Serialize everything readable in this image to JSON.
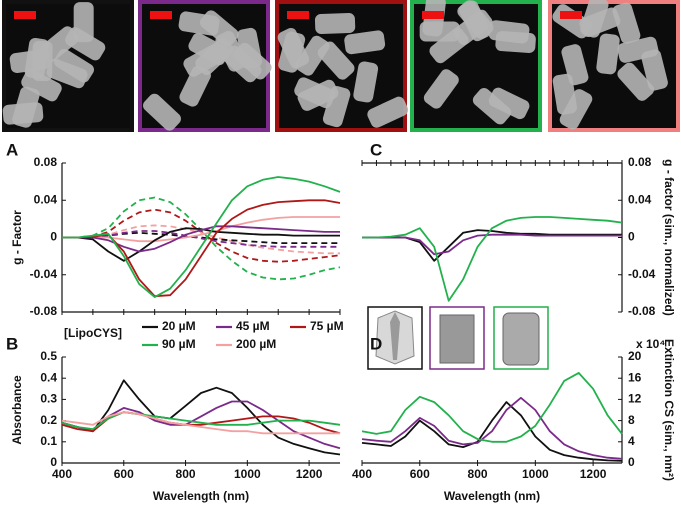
{
  "chart_data": [
    {
      "type": "line",
      "panel": "A",
      "ylabel": "g - Factor",
      "x": [
        400,
        450,
        500,
        550,
        600,
        650,
        700,
        750,
        800,
        850,
        900,
        950,
        1000,
        1050,
        1100,
        1150,
        1200,
        1250,
        1300
      ],
      "xlim": [
        400,
        1300
      ],
      "xticks": [
        400,
        500,
        600,
        700,
        800,
        900,
        1000,
        1100,
        1200,
        1300
      ],
      "ylim": [
        -0.08,
        0.08
      ],
      "yticks": [
        -0.08,
        -0.04,
        0,
        0.04,
        0.08
      ],
      "series": [
        {
          "color": "#22b14c",
          "line_style": "dashed",
          "values": [
            0,
            0,
            0.002,
            0.01,
            0.028,
            0.04,
            0.043,
            0.038,
            0.025,
            0.008,
            -0.01,
            -0.025,
            -0.037,
            -0.043,
            -0.045,
            -0.044,
            -0.04,
            -0.035,
            -0.032
          ]
        },
        {
          "color": "#b01818",
          "line_style": "dashed",
          "values": [
            0,
            0,
            0.001,
            0.006,
            0.018,
            0.027,
            0.03,
            0.027,
            0.018,
            0.006,
            -0.006,
            -0.015,
            -0.022,
            -0.025,
            -0.026,
            -0.025,
            -0.023,
            -0.021,
            -0.019
          ]
        },
        {
          "color": "#f4a0a0",
          "line_style": "dashed",
          "values": [
            0,
            0,
            0,
            0.003,
            0.008,
            0.012,
            0.013,
            0.012,
            0.009,
            0.005,
            0,
            -0.004,
            -0.008,
            -0.011,
            -0.013,
            -0.015,
            -0.016,
            -0.017,
            -0.017
          ]
        },
        {
          "color": "#111111",
          "line_style": "dashed",
          "values": [
            0,
            0,
            0,
            0.002,
            0.004,
            0.005,
            0.004,
            0.003,
            0.001,
            0,
            -0.002,
            -0.003,
            -0.004,
            -0.005,
            -0.006,
            -0.006,
            -0.006,
            -0.006,
            -0.006
          ]
        },
        {
          "color": "#7b2a8c",
          "line_style": "dashed",
          "values": [
            0,
            0,
            0,
            0.002,
            0.005,
            0.007,
            0.007,
            0.005,
            0.002,
            -0.001,
            -0.004,
            -0.006,
            -0.008,
            -0.009,
            -0.01,
            -0.01,
            -0.01,
            -0.01,
            -0.01
          ]
        },
        {
          "color": "#f4a0a0",
          "line_style": "solid",
          "values": [
            0,
            0,
            0,
            0,
            -0.002,
            -0.004,
            -0.004,
            -0.002,
            0,
            0.003,
            0.007,
            0.012,
            0.016,
            0.019,
            0.021,
            0.022,
            0.022,
            0.022,
            0.022
          ]
        },
        {
          "color": "#111111",
          "line_style": "solid",
          "values": [
            0,
            0,
            -0.002,
            -0.015,
            -0.025,
            -0.015,
            -0.003,
            0.006,
            0.01,
            0.009,
            0.006,
            0.005,
            0.004,
            0.003,
            0.003,
            0.002,
            0.002,
            0.002,
            0.002
          ]
        },
        {
          "color": "#7b2a8c",
          "line_style": "solid",
          "values": [
            0,
            0,
            0,
            -0.003,
            -0.01,
            -0.015,
            -0.012,
            -0.005,
            0.003,
            0.008,
            0.012,
            0.012,
            0.011,
            0.01,
            0.009,
            0.008,
            0.007,
            0.006,
            0.006
          ]
        },
        {
          "color": "#b01818",
          "line_style": "solid",
          "values": [
            0,
            0,
            0.001,
            0.003,
            -0.015,
            -0.045,
            -0.063,
            -0.062,
            -0.045,
            -0.02,
            0.005,
            0.02,
            0.03,
            0.035,
            0.038,
            0.039,
            0.04,
            0.04,
            0.037
          ]
        },
        {
          "color": "#22b14c",
          "line_style": "solid",
          "values": [
            0,
            0,
            0.002,
            0.004,
            -0.02,
            -0.05,
            -0.064,
            -0.055,
            -0.035,
            -0.01,
            0.015,
            0.04,
            0.055,
            0.062,
            0.065,
            0.063,
            0.06,
            0.055,
            0.049
          ]
        }
      ]
    },
    {
      "type": "line",
      "panel": "B",
      "ylabel": "Absorbance",
      "xlabel": "Wavelength (nm)",
      "legend_title": "[LipoCYS]",
      "x": [
        400,
        450,
        500,
        550,
        600,
        650,
        700,
        750,
        800,
        850,
        900,
        950,
        1000,
        1050,
        1100,
        1150,
        1200,
        1250,
        1300
      ],
      "xlim": [
        400,
        1300
      ],
      "xticks": [
        400,
        600,
        800,
        1000,
        1200
      ],
      "ylim": [
        0,
        0.5
      ],
      "yticks": [
        0,
        0.1,
        0.2,
        0.3,
        0.4,
        0.5
      ],
      "series": [
        {
          "name": "20 µM",
          "color": "#111111",
          "values": [
            0.19,
            0.17,
            0.15,
            0.25,
            0.39,
            0.3,
            0.22,
            0.21,
            0.27,
            0.33,
            0.355,
            0.33,
            0.26,
            0.18,
            0.12,
            0.09,
            0.07,
            0.05,
            0.04
          ]
        },
        {
          "name": "45 µM",
          "color": "#7b2a8c",
          "values": [
            0.19,
            0.17,
            0.15,
            0.22,
            0.26,
            0.24,
            0.2,
            0.18,
            0.18,
            0.22,
            0.26,
            0.29,
            0.29,
            0.25,
            0.2,
            0.15,
            0.12,
            0.09,
            0.07
          ]
        },
        {
          "name": "75 µM",
          "color": "#b01818",
          "values": [
            0.18,
            0.16,
            0.15,
            0.21,
            0.24,
            0.23,
            0.21,
            0.19,
            0.18,
            0.18,
            0.19,
            0.2,
            0.21,
            0.22,
            0.22,
            0.21,
            0.19,
            0.16,
            0.14
          ]
        },
        {
          "name": "90 µM",
          "color": "#22b14c",
          "values": [
            0.19,
            0.17,
            0.16,
            0.21,
            0.24,
            0.23,
            0.22,
            0.21,
            0.2,
            0.19,
            0.18,
            0.18,
            0.18,
            0.19,
            0.2,
            0.2,
            0.2,
            0.19,
            0.18
          ]
        },
        {
          "name": "200 µM",
          "color": "#f4a0a0",
          "values": [
            0.2,
            0.19,
            0.18,
            0.22,
            0.24,
            0.23,
            0.21,
            0.19,
            0.18,
            0.17,
            0.16,
            0.15,
            0.15,
            0.14,
            0.14,
            0.14,
            0.14,
            0.14,
            0.14
          ]
        }
      ]
    },
    {
      "type": "line",
      "panel": "C",
      "ylabel": "g - factor (sim., normalized)",
      "x": [
        400,
        450,
        500,
        550,
        600,
        650,
        700,
        750,
        800,
        850,
        900,
        950,
        1000,
        1050,
        1100,
        1150,
        1200,
        1250,
        1300
      ],
      "xlim": [
        400,
        1300
      ],
      "xticks": [
        400,
        450,
        500,
        550,
        600,
        650,
        700,
        750,
        800,
        850,
        900,
        950,
        1000,
        1050,
        1100,
        1150,
        1200,
        1250,
        1300
      ],
      "ylim": [
        -0.08,
        0.08
      ],
      "yticks": [
        -0.08,
        -0.04,
        0,
        0.04,
        0.08
      ],
      "series": [
        {
          "color": "#111111",
          "values": [
            0,
            0,
            0,
            0,
            -0.005,
            -0.025,
            -0.01,
            0.005,
            0.008,
            0.007,
            0.005,
            0.004,
            0.004,
            0.003,
            0.003,
            0.003,
            0.003,
            0.003,
            0.003
          ]
        },
        {
          "color": "#7b2a8c",
          "values": [
            0,
            0,
            0,
            0,
            -0.003,
            -0.018,
            -0.015,
            -0.003,
            0.002,
            0.003,
            0.003,
            0.003,
            0.002,
            0.002,
            0.002,
            0.002,
            0.002,
            0.002,
            0.002
          ]
        },
        {
          "color": "#22b14c",
          "values": [
            0,
            0,
            0.001,
            0.003,
            0.01,
            -0.01,
            -0.068,
            -0.045,
            -0.01,
            0.01,
            0.018,
            0.021,
            0.022,
            0.022,
            0.021,
            0.02,
            0.019,
            0.018,
            0.016
          ]
        }
      ]
    },
    {
      "type": "line",
      "panel": "D",
      "ylabel": "Extinction CS (sim., nm²)",
      "xlabel": "Wavelength (nm)",
      "y_scale_note": "x 10⁴",
      "x": [
        400,
        450,
        500,
        550,
        600,
        650,
        700,
        750,
        800,
        850,
        900,
        950,
        1000,
        1050,
        1100,
        1150,
        1200,
        1250,
        1300
      ],
      "xlim": [
        400,
        1300
      ],
      "xticks": [
        400,
        600,
        800,
        1000,
        1200
      ],
      "ylim": [
        0,
        20
      ],
      "yticks": [
        0,
        4,
        8,
        12,
        16,
        20
      ],
      "series": [
        {
          "color": "#111111",
          "values": [
            3.8,
            3.5,
            3.2,
            5,
            8,
            6,
            3.5,
            3,
            4,
            8,
            11.5,
            9,
            5,
            2.5,
            1.5,
            1,
            0.7,
            0.5,
            0.4
          ]
        },
        {
          "color": "#7b2a8c",
          "values": [
            4.5,
            4.2,
            4,
            6,
            8.5,
            7,
            4.2,
            3.5,
            3.8,
            6,
            10,
            12.3,
            10,
            6,
            3.5,
            2.2,
            1.5,
            1,
            0.8
          ]
        },
        {
          "color": "#22b14c",
          "values": [
            6,
            5.5,
            6,
            10,
            12.5,
            11.5,
            9,
            6,
            4.5,
            4,
            4,
            5,
            7,
            11,
            15.5,
            17,
            14,
            9,
            5.5
          ]
        }
      ]
    }
  ]
}
